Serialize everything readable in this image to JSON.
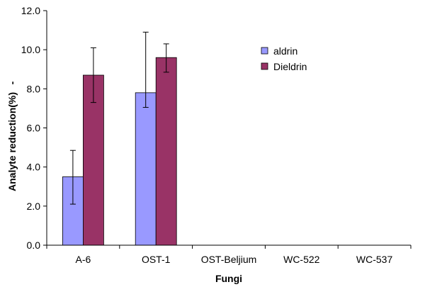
{
  "chart_data": {
    "type": "bar",
    "title": "",
    "xlabel": "Fungi",
    "ylabel": "Analyte reduction(%)",
    "ylabel_suffix": "-",
    "categories": [
      "A-6",
      "OST-1",
      "OST-Beljium",
      "WC-522",
      "WC-537"
    ],
    "ylim": [
      0,
      12
    ],
    "yticks": [
      "0.0",
      "2.0",
      "4.0",
      "6.0",
      "8.0",
      "10.0",
      "12.0"
    ],
    "ytick_values": [
      0,
      2,
      4,
      6,
      8,
      10,
      12
    ],
    "grid": false,
    "legend_position": "top-right",
    "series": [
      {
        "name": "aldrin",
        "color": "#9999ff",
        "values": [
          3.5,
          7.8,
          null,
          null,
          null
        ],
        "error_low": [
          2.1,
          7.05,
          null,
          null,
          null
        ],
        "error_high": [
          4.85,
          10.9,
          null,
          null,
          null
        ]
      },
      {
        "name": "Dieldrin",
        "color": "#993366",
        "values": [
          8.7,
          9.6,
          null,
          null,
          null
        ],
        "error_low": [
          7.3,
          8.85,
          null,
          null,
          null
        ],
        "error_high": [
          10.1,
          10.3,
          null,
          null,
          null
        ]
      }
    ]
  }
}
